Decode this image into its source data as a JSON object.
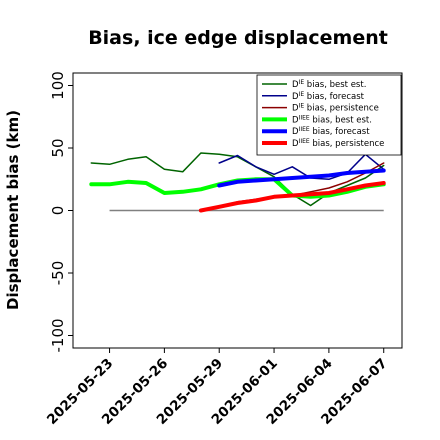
{
  "chart_data": {
    "type": "line",
    "title": "Bias, ice edge displacement",
    "ylabel": "Displacement bias (km)",
    "xlabel": "",
    "ylim": [
      -110,
      110
    ],
    "yticks": [
      100,
      50,
      0,
      -50,
      -100
    ],
    "ytick_labels": [
      "100",
      "50",
      "0",
      "-50",
      "-100"
    ],
    "xlim": [
      "2025-05-21",
      "2025-06-08"
    ],
    "xticks": [
      "2025-05-23",
      "2025-05-26",
      "2025-05-29",
      "2025-06-01",
      "2025-06-04",
      "2025-06-07"
    ],
    "xtick_labels": [
      "2025-05-23",
      "2025-05-26",
      "2025-05-29",
      "2025-06-01",
      "2025-06-04",
      "2025-06-07"
    ],
    "xtick_colors": [
      "#000000",
      "#000000",
      "#1a8a1a",
      "#000000",
      "#000000",
      "#000000"
    ],
    "zero_line": true,
    "zero_line_color": "#808080",
    "grid": false,
    "legend_position": "top-right",
    "series": [
      {
        "name": "D^IE bias, best est.",
        "color": "#006400",
        "width": 1.5,
        "x": [
          "2025-05-22",
          "2025-05-23",
          "2025-05-24",
          "2025-05-25",
          "2025-05-26",
          "2025-05-27",
          "2025-05-28",
          "2025-05-29",
          "2025-05-30",
          "2025-05-31",
          "2025-06-01",
          "2025-06-02",
          "2025-06-03",
          "2025-06-04",
          "2025-06-05",
          "2025-06-06",
          "2025-06-07"
        ],
        "values": [
          38,
          37,
          41,
          43,
          33,
          31,
          46,
          45,
          43,
          35,
          27,
          13,
          4,
          14,
          20,
          26,
          36
        ]
      },
      {
        "name": "D^IE bias, forecast",
        "color": "#00008b",
        "width": 1.5,
        "x": [
          "2025-05-29",
          "2025-05-30",
          "2025-05-31",
          "2025-06-01",
          "2025-06-02",
          "2025-06-03",
          "2025-06-04",
          "2025-06-05",
          "2025-06-06",
          "2025-06-07"
        ],
        "values": [
          38,
          44,
          35,
          29,
          35,
          26,
          25,
          30,
          45,
          33
        ]
      },
      {
        "name": "D^IE bias, persistence",
        "color": "#8b0000",
        "width": 1.5,
        "x": [
          "2025-05-28",
          "2025-05-29",
          "2025-05-30",
          "2025-05-31",
          "2025-06-01",
          "2025-06-02",
          "2025-06-03",
          "2025-06-04",
          "2025-06-05",
          "2025-06-06",
          "2025-06-07"
        ],
        "values": [
          0,
          3,
          7,
          9,
          11,
          12,
          15,
          18,
          23,
          30,
          38
        ]
      },
      {
        "name": "D^IIEE bias, best est.",
        "color": "#00ff00",
        "width": 4,
        "x": [
          "2025-05-22",
          "2025-05-23",
          "2025-05-24",
          "2025-05-25",
          "2025-05-26",
          "2025-05-27",
          "2025-05-28",
          "2025-05-29",
          "2025-05-30",
          "2025-05-31",
          "2025-06-01",
          "2025-06-02",
          "2025-06-03",
          "2025-06-04",
          "2025-06-05",
          "2025-06-06",
          "2025-06-07"
        ],
        "values": [
          21,
          21,
          23,
          22,
          14,
          15,
          17,
          21,
          24,
          25,
          25,
          12,
          11,
          12,
          15,
          19,
          21
        ]
      },
      {
        "name": "D^IIEE bias, forecast",
        "color": "#0000ff",
        "width": 4,
        "x": [
          "2025-05-29",
          "2025-05-30",
          "2025-05-31",
          "2025-06-01",
          "2025-06-02",
          "2025-06-03",
          "2025-06-04",
          "2025-06-05",
          "2025-06-06",
          "2025-06-07"
        ],
        "values": [
          20,
          23,
          24,
          25,
          26,
          27,
          28,
          30,
          31,
          32
        ]
      },
      {
        "name": "D^IIEE bias, persistence",
        "color": "#ff0000",
        "width": 4,
        "x": [
          "2025-05-28",
          "2025-05-29",
          "2025-05-30",
          "2025-05-31",
          "2025-06-01",
          "2025-06-02",
          "2025-06-03",
          "2025-06-04",
          "2025-06-05",
          "2025-06-06",
          "2025-06-07"
        ],
        "values": [
          0,
          3,
          6,
          8,
          11,
          12,
          13,
          14,
          17,
          20,
          22
        ]
      }
    ],
    "legend": [
      {
        "base": "D",
        "sup": "IE",
        "rest": " bias, best est."
      },
      {
        "base": "D",
        "sup": "IE",
        "rest": " bias, forecast"
      },
      {
        "base": "D",
        "sup": "IE",
        "rest": " bias, persistence"
      },
      {
        "base": "D",
        "sup": "IIEE",
        "rest": " bias, best est."
      },
      {
        "base": "D",
        "sup": "IIEE",
        "rest": " bias, forecast"
      },
      {
        "base": "D",
        "sup": "IIEE",
        "rest": " bias, persistence"
      }
    ]
  }
}
